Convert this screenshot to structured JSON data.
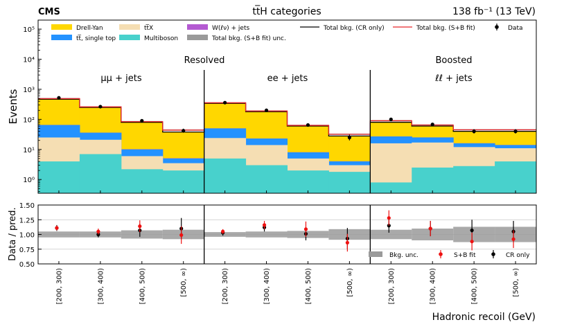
{
  "header": {
    "experiment": "CMS",
    "title": "tt̅H categories",
    "lumi": "138 fb⁻¹ (13 TeV)"
  },
  "top_panel": {
    "ylabel": "Events",
    "yticks": [
      "10⁰",
      "10¹",
      "10²",
      "10³",
      "10⁴",
      "10⁵"
    ]
  },
  "bottom_panel": {
    "ylabel": "Data / pred.",
    "yticks": [
      "0.50",
      "0.75",
      "1.00",
      "1.25",
      "1.50"
    ],
    "legend": {
      "bkg_unc": "Bkg. unc.",
      "sb_fit": "S+B fit",
      "cr_only": "CR only"
    }
  },
  "xlabel": "Hadronic recoil (GeV)",
  "region_labels": {
    "resolved": "Resolved",
    "boosted": "Boosted"
  },
  "category_labels": [
    "μμ + jets",
    "ee + jets",
    "ℓℓ + jets"
  ],
  "bin_labels": [
    "[200, 300)",
    "[300, 400)",
    "[400, 500)",
    "[500, ∞)",
    "[200, 300)",
    "[300, 400)",
    "[400, 500)",
    "[500, ∞)",
    "[200, 300)",
    "[300, 400)",
    "[400, 500)",
    "[500, ∞)"
  ],
  "legend": {
    "dy": "Drell-Yan",
    "ttx": "tt̅X",
    "wlnu": "W(ℓν) + jets",
    "tot_cr": "Total bkg. (CR only)",
    "tot_sb": "Total bkg. (S+B fit)",
    "data": "Data",
    "tt": "tt̅, single top",
    "multiboson": "Multiboson",
    "unc": "Total bkg. (S+B fit) unc."
  },
  "colors": {
    "dy": "#ffd700",
    "tt": "#2492ff",
    "ttx": "#f5deb3",
    "multiboson": "#48d1cc",
    "wlnu": "#b45ad2",
    "unc": "#9a9a9a",
    "cr_line": "#000000",
    "sb_line": "#e8262b",
    "sb_marker": "#ee1111",
    "data": "#000000"
  },
  "chart_data": {
    "type": "stacked histogram with ratio panel",
    "title": "tt̅H categories",
    "xlabel": "Hadronic recoil (GeV)",
    "ylabel": "Events",
    "ylim": [
      0.35,
      200000
    ],
    "yscale": "log",
    "ratio_ylabel": "Data / pred.",
    "ratio_ylim": [
      0.5,
      1.5
    ],
    "stack_order": [
      "Multiboson",
      "ttX",
      "tt, single top",
      "W(lv) + jets",
      "Drell-Yan"
    ],
    "multiboson": [
      4.0,
      7.0,
      2.2,
      2.0,
      5.0,
      3.0,
      2.0,
      1.8,
      0.8,
      2.5,
      2.8,
      4.0
    ],
    "ttX": [
      25,
      21,
      6,
      3.5,
      24,
      14,
      5,
      3.0,
      16,
      17,
      12,
      11
    ],
    "tt_single_top": [
      65,
      36,
      10,
      5,
      50,
      23,
      8,
      4,
      27,
      25,
      16,
      14
    ],
    "w_lnu_jets": [
      65.5,
      36.3,
      10.2,
      5.1,
      50.4,
      23.2,
      8.1,
      4.05,
      27.2,
      25.2,
      16.1,
      14.1
    ],
    "total_cr": [
      470,
      250,
      80,
      38,
      340,
      180,
      60,
      28,
      80,
      60,
      40,
      40
    ],
    "total_sb": [
      490,
      260,
      84,
      44,
      355,
      190,
      63,
      32,
      90,
      65,
      45,
      45
    ],
    "data": [
      520,
      265,
      90,
      42,
      360,
      200,
      65,
      25,
      100,
      68,
      40,
      40
    ],
    "data_err_low": [
      25,
      16,
      9,
      6,
      19,
      14,
      8,
      5,
      10,
      8,
      6,
      6
    ],
    "data_err_high": [
      25,
      16,
      9,
      7,
      19,
      14,
      8,
      6,
      10,
      8,
      7,
      7
    ],
    "unc_band_halfwidth": [
      0.05,
      0.05,
      0.07,
      0.08,
      0.04,
      0.05,
      0.06,
      0.09,
      0.08,
      0.1,
      0.13,
      0.13
    ],
    "ratio_cr_only": [
      1.11,
      1.0,
      1.07,
      1.1,
      1.03,
      1.12,
      1.01,
      0.93,
      1.15,
      1.1,
      1.07,
      1.05
    ],
    "ratio_cr_err": [
      0.05,
      0.05,
      0.11,
      0.18,
      0.05,
      0.07,
      0.11,
      0.18,
      0.12,
      0.13,
      0.18,
      0.18
    ],
    "ratio_sb_fit": [
      1.11,
      1.05,
      1.14,
      0.99,
      1.05,
      1.16,
      1.09,
      0.86,
      1.28,
      1.1,
      0.88,
      0.92
    ],
    "ratio_sb_err": [
      0.04,
      0.05,
      0.1,
      0.15,
      0.04,
      0.07,
      0.13,
      0.15,
      0.13,
      0.13,
      0.15,
      0.15
    ]
  }
}
